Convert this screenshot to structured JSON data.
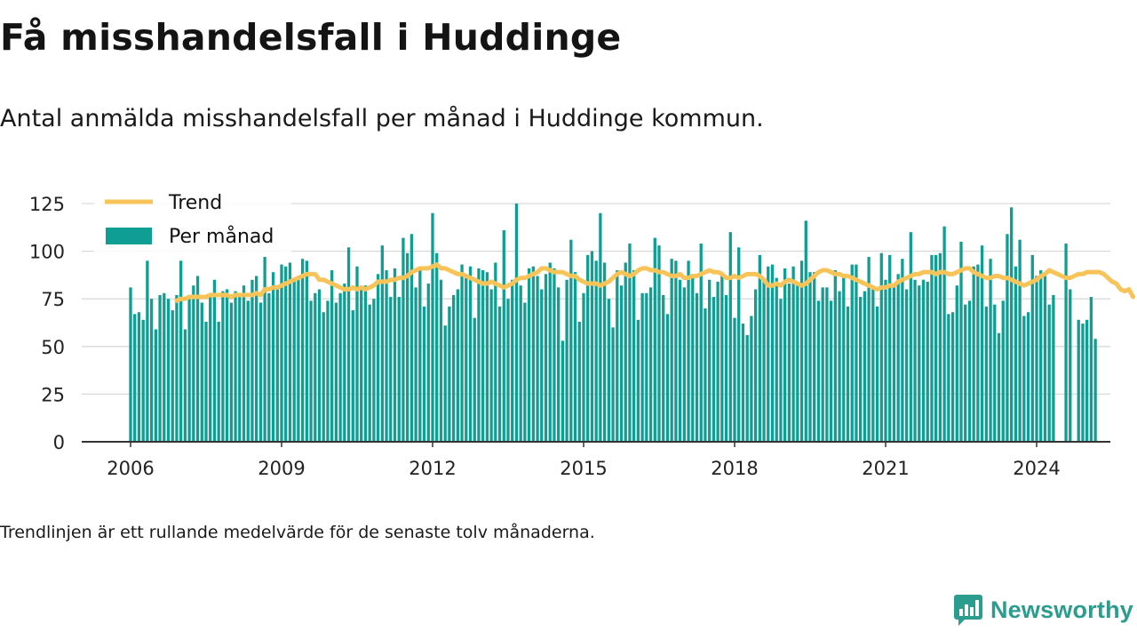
{
  "title": "Få misshandelsfall i Huddinge",
  "subtitle": "Antal anmälda misshandelsfall per månad i Huddinge kommun.",
  "note": "Trendlinjen är ett rullande medelvärde för de senaste tolv månaderna.",
  "brand": {
    "name": "Newsworthy",
    "icon": "newsworthy-logo-icon"
  },
  "colors": {
    "bars": "#0f9e93",
    "trend": "#f8c45a",
    "grid": "#d9d9d9",
    "axis": "#333333",
    "brand": "#2a9d8f"
  },
  "chart_data": {
    "type": "bar",
    "start": "2006-01",
    "xticks": [
      "2006",
      "2009",
      "2012",
      "2015",
      "2018",
      "2021",
      "2024"
    ],
    "xtick_months": [
      "2006-01",
      "2009-01",
      "2012-01",
      "2015-01",
      "2018-01",
      "2021-01",
      "2024-01"
    ],
    "yticks": [
      0,
      25,
      50,
      75,
      100,
      125
    ],
    "ylim": [
      0,
      125
    ],
    "grid": true,
    "legend": {
      "position": "top-left",
      "items": [
        {
          "label": "Trend",
          "kind": "line"
        },
        {
          "label": "Per månad",
          "kind": "bar"
        }
      ]
    },
    "series": [
      {
        "name": "Per månad",
        "kind": "bar",
        "values": [
          81,
          67,
          68,
          64,
          95,
          75,
          59,
          77,
          78,
          75,
          69,
          77,
          95,
          59,
          77,
          82,
          87,
          73,
          63,
          77,
          85,
          63,
          79,
          80,
          73,
          79,
          77,
          82,
          74,
          85,
          87,
          73,
          97,
          78,
          89,
          82,
          93,
          92,
          94,
          86,
          87,
          96,
          95,
          74,
          78,
          80,
          68,
          74,
          90,
          73,
          78,
          83,
          102,
          69,
          92,
          81,
          82,
          72,
          75,
          88,
          103,
          90,
          76,
          91,
          76,
          107,
          99,
          109,
          81,
          90,
          71,
          83,
          120,
          99,
          85,
          61,
          71,
          77,
          80,
          93,
          86,
          92,
          65,
          91,
          90,
          89,
          80,
          94,
          71,
          111,
          75,
          85,
          125,
          82,
          73,
          91,
          92,
          87,
          80,
          88,
          94,
          91,
          81,
          53,
          85,
          106,
          89,
          63,
          78,
          98,
          100,
          95,
          120,
          94,
          75,
          60,
          90,
          82,
          94,
          104,
          90,
          64,
          78,
          78,
          81,
          107,
          103,
          77,
          67,
          96,
          95,
          85,
          81,
          95,
          88,
          78,
          104,
          70,
          85,
          76,
          84,
          87,
          77,
          110,
          65,
          102,
          62,
          56,
          66,
          80,
          98,
          85,
          92,
          93,
          86,
          75,
          91,
          83,
          92,
          84,
          95,
          116,
          89,
          89,
          74,
          81,
          81,
          74,
          90,
          79,
          87,
          71,
          93,
          93,
          76,
          79,
          97,
          80,
          71,
          99,
          85,
          98,
          83,
          88,
          96,
          80,
          110,
          85,
          82,
          85,
          84,
          98,
          98,
          99,
          113,
          67,
          68,
          82,
          105,
          72,
          74,
          92,
          93,
          103,
          71,
          96,
          72,
          57,
          74,
          109,
          123,
          92,
          106,
          66,
          68,
          98,
          87,
          90,
          87,
          72,
          77,
          null,
          null,
          104,
          80,
          null,
          64,
          62,
          64,
          76,
          54
        ]
      },
      {
        "name": "Trend",
        "kind": "line",
        "values": [
          null,
          null,
          null,
          null,
          null,
          null,
          null,
          null,
          null,
          null,
          null,
          74,
          75,
          75,
          76,
          76,
          76,
          76,
          76,
          77,
          77,
          77,
          77,
          77,
          76,
          77,
          77,
          77,
          77,
          77,
          78,
          77,
          80,
          80,
          81,
          81,
          82,
          83,
          84,
          85,
          86,
          87,
          88,
          88,
          88,
          85,
          85,
          84,
          83,
          82,
          81,
          80,
          80,
          81,
          80,
          81,
          80,
          81,
          82,
          84,
          84,
          84,
          85,
          85,
          86,
          86,
          87,
          89,
          90,
          91,
          91,
          91,
          92,
          93,
          91,
          91,
          90,
          89,
          88,
          88,
          87,
          86,
          85,
          84,
          83,
          83,
          84,
          83,
          82,
          81,
          82,
          83,
          85,
          86,
          86,
          87,
          88,
          89,
          91,
          91,
          90,
          89,
          89,
          89,
          88,
          87,
          87,
          85,
          84,
          83,
          83,
          83,
          82,
          83,
          84,
          86,
          88,
          89,
          88,
          87,
          88,
          90,
          91,
          91,
          90,
          90,
          89,
          89,
          88,
          87,
          87,
          88,
          86,
          86,
          87,
          87,
          88,
          89,
          90,
          89,
          89,
          88,
          86,
          86,
          87,
          86,
          87,
          88,
          88,
          88,
          87,
          85,
          82,
          82,
          83,
          82,
          84,
          85,
          84,
          83,
          82,
          83,
          85,
          87,
          89,
          90,
          90,
          89,
          88,
          88,
          87,
          87,
          86,
          85,
          84,
          83,
          82,
          81,
          80,
          81,
          81,
          82,
          82,
          84,
          85,
          86,
          87,
          88,
          88,
          89,
          89,
          89,
          88,
          89,
          89,
          88,
          88,
          89,
          90,
          91,
          91,
          89,
          88,
          87,
          86,
          86,
          87,
          87,
          86,
          86,
          85,
          84,
          83,
          82,
          83,
          84,
          85,
          87,
          88,
          90,
          89,
          88,
          87,
          86,
          86,
          87,
          88,
          88,
          89,
          89,
          89,
          89,
          88,
          86,
          84,
          83,
          80,
          79,
          80,
          76
        ]
      }
    ]
  }
}
